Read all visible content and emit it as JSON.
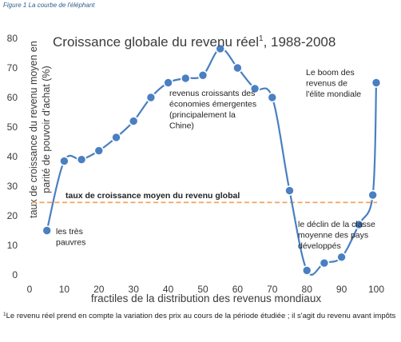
{
  "figure_caption": "Figure 1 La courbe de l'éléphant",
  "footnote": {
    "marker": "1",
    "text": "Le revenu réel prend en compte la variation des prix au cours de la période étudiée ; il s'agit du revenu avant impôts"
  },
  "chart_data": {
    "type": "line",
    "title": "Croissance globale du revenu réel",
    "title_sup": "1",
    "title_suffix": ", 1988-2008",
    "xlabel": "fractiles de la distribution des revenus mondiaux",
    "ylabel_line1": "taux de croissance du revenu moyen en",
    "ylabel_line2": "parité de pouvoir d'achat (%)",
    "xlim": [
      0,
      100
    ],
    "ylim": [
      0,
      80
    ],
    "xticks": [
      0,
      10,
      20,
      30,
      40,
      50,
      60,
      70,
      80,
      90,
      100
    ],
    "yticks": [
      0,
      10,
      20,
      30,
      40,
      50,
      60,
      70,
      80
    ],
    "grid": false,
    "series": [
      {
        "color": "#4a7fc1",
        "x": [
          5,
          10,
          15,
          20,
          25,
          30,
          35,
          40,
          45,
          50,
          55,
          60,
          65,
          70,
          75,
          80,
          85,
          90,
          95,
          99,
          100
        ],
        "y": [
          15,
          38.5,
          39,
          42,
          46.5,
          52,
          60,
          65,
          66.5,
          67.5,
          76.5,
          70,
          63,
          60,
          28.5,
          1.5,
          4,
          6,
          17,
          27,
          65
        ]
      }
    ],
    "reference_line": {
      "y": 24.5,
      "label": "taux de croissance moyen du revenu global",
      "color": "#f0a35e"
    },
    "annotations": [
      {
        "lines": [
          "les très",
          "pauvres"
        ]
      },
      {
        "lines": [
          "revenus croissants des",
          "économies émergentes",
          "(principalement la",
          "Chine)"
        ]
      },
      {
        "lines": [
          "Le boom des",
          "revenus de",
          "l'élite mondiale"
        ]
      },
      {
        "lines": [
          "le déclin de la classe",
          "moyenne des pays",
          "développés"
        ]
      }
    ]
  }
}
